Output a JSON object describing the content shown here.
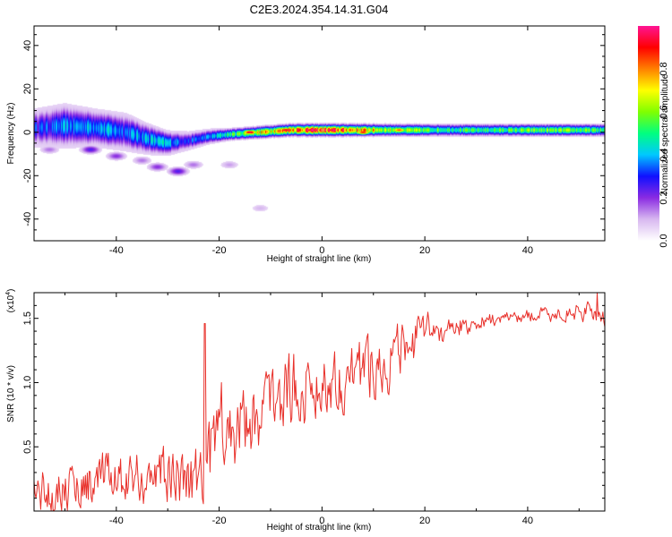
{
  "figure_title": "C2E3.2024.354.14.31.G04",
  "chart_data": [
    {
      "id": "spectrogram",
      "type": "heatmap",
      "xlabel": "Height of straight line (km)",
      "ylabel": "Frequency (Hz)",
      "xlim": [
        -56,
        55
      ],
      "ylim": [
        -50,
        49
      ],
      "xticks": [
        -40,
        -20,
        0,
        20,
        40
      ],
      "yticks": [
        -40,
        -20,
        0,
        20,
        40
      ],
      "xtick_labels": [
        "-40",
        "-20",
        "0",
        "20",
        "40"
      ],
      "ytick_labels": [
        "-40",
        "-20",
        "0",
        "20",
        "40"
      ],
      "colorbar": {
        "label": "Normalized spectral amplitude",
        "range": [
          0,
          1
        ],
        "ticks": [
          0.0,
          0.2,
          0.4,
          0.6,
          0.8
        ],
        "tick_labels": [
          "0.0",
          "0.2",
          "0.4",
          "0.6",
          "0.8"
        ],
        "colors": [
          "#ffffff",
          "#d8b8f0",
          "#8a2be2",
          "#1010ff",
          "#00c8ff",
          "#00ff80",
          "#80ff00",
          "#ffff00",
          "#ff8000",
          "#ff0000",
          "#ff1493"
        ]
      },
      "ridge": [
        {
          "x": -56,
          "y": 2,
          "width": 6,
          "amp": 0.3
        },
        {
          "x": -50,
          "y": 3,
          "width": 7,
          "amp": 0.35
        },
        {
          "x": -44,
          "y": 2,
          "width": 6,
          "amp": 0.4
        },
        {
          "x": -38,
          "y": 0,
          "width": 6,
          "amp": 0.35
        },
        {
          "x": -34,
          "y": -3,
          "width": 5,
          "amp": 0.4
        },
        {
          "x": -30,
          "y": -5,
          "width": 4,
          "amp": 0.4
        },
        {
          "x": -26,
          "y": -4,
          "width": 3,
          "amp": 0.3
        },
        {
          "x": -22,
          "y": -2,
          "width": 2.5,
          "amp": 0.35
        },
        {
          "x": -18,
          "y": -1,
          "width": 2,
          "amp": 0.5
        },
        {
          "x": -12,
          "y": 0,
          "width": 2,
          "amp": 0.7
        },
        {
          "x": -6,
          "y": 1,
          "width": 2,
          "amp": 0.85
        },
        {
          "x": 0,
          "y": 1,
          "width": 2,
          "amp": 0.9
        },
        {
          "x": 6,
          "y": 1,
          "width": 2,
          "amp": 0.8
        },
        {
          "x": 12,
          "y": 1,
          "width": 2,
          "amp": 0.65
        },
        {
          "x": 20,
          "y": 1,
          "width": 2,
          "amp": 0.55
        },
        {
          "x": 30,
          "y": 1,
          "width": 2,
          "amp": 0.5
        },
        {
          "x": 40,
          "y": 1,
          "width": 2,
          "amp": 0.55
        },
        {
          "x": 50,
          "y": 1,
          "width": 2,
          "amp": 0.55
        },
        {
          "x": 55,
          "y": 1,
          "width": 2,
          "amp": 0.5
        }
      ],
      "blobs": [
        {
          "x": -45,
          "y": -8,
          "amp": 0.25
        },
        {
          "x": -40,
          "y": -11,
          "amp": 0.2
        },
        {
          "x": -32,
          "y": -16,
          "amp": 0.2
        },
        {
          "x": -28,
          "y": -18,
          "amp": 0.25
        },
        {
          "x": -35,
          "y": -13,
          "amp": 0.15
        },
        {
          "x": -25,
          "y": -15,
          "amp": 0.15
        },
        {
          "x": -18,
          "y": -15,
          "amp": 0.12
        },
        {
          "x": -12,
          "y": -35,
          "amp": 0.1
        },
        {
          "x": -53,
          "y": -8,
          "amp": 0.15
        }
      ],
      "hotspots": [
        {
          "x": -14,
          "y": 0,
          "amp": 0.98
        },
        {
          "x": -7,
          "y": 1,
          "amp": 0.95
        },
        {
          "x": -2,
          "y": 1,
          "amp": 1.0
        },
        {
          "x": 2,
          "y": 1,
          "amp": 0.95
        },
        {
          "x": 8,
          "y": 0,
          "amp": 0.9
        },
        {
          "x": 15,
          "y": 1,
          "amp": 0.85
        }
      ]
    },
    {
      "id": "snr",
      "type": "line",
      "xlabel": "Height of straight line (km)",
      "ylabel": "SNR (10 * v/v)",
      "multiplier": "(x10",
      "multiplier_exp": "4",
      "xlim": [
        -56,
        55
      ],
      "ylim": [
        0,
        1.7
      ],
      "xticks": [
        -40,
        -20,
        0,
        20,
        40
      ],
      "yticks": [
        0.5,
        1.0,
        1.5
      ],
      "xtick_labels": [
        "-40",
        "-20",
        "0",
        "20",
        "40"
      ],
      "ytick_labels": [
        "0.5",
        "1.0",
        "1.5"
      ],
      "color": "#e8302a",
      "trend": {
        "x": [
          -56,
          -40,
          -30,
          -24,
          -22,
          -20,
          -15,
          -10,
          -5,
          0,
          5,
          10,
          15,
          20,
          25,
          30,
          35,
          40,
          45,
          50,
          53,
          55
        ],
        "y": [
          0.15,
          0.25,
          0.28,
          0.3,
          0.45,
          0.55,
          0.7,
          0.85,
          0.95,
          1.0,
          1.05,
          1.15,
          1.2,
          1.38,
          1.42,
          1.47,
          1.5,
          1.52,
          1.53,
          1.55,
          1.55,
          1.5
        ]
      },
      "amplitude": {
        "x": [
          -56,
          -30,
          -22,
          0,
          15,
          25,
          35,
          55
        ],
        "y": [
          0.2,
          0.25,
          0.35,
          0.3,
          0.25,
          0.1,
          0.05,
          0.08
        ]
      },
      "spikes": [
        {
          "x": -22.8,
          "y": 1.46
        },
        {
          "x": -19.5,
          "y": 1.0
        },
        {
          "x": 9,
          "y": 1.38
        },
        {
          "x": 53.5,
          "y": 1.7
        }
      ],
      "samples": 600
    }
  ]
}
